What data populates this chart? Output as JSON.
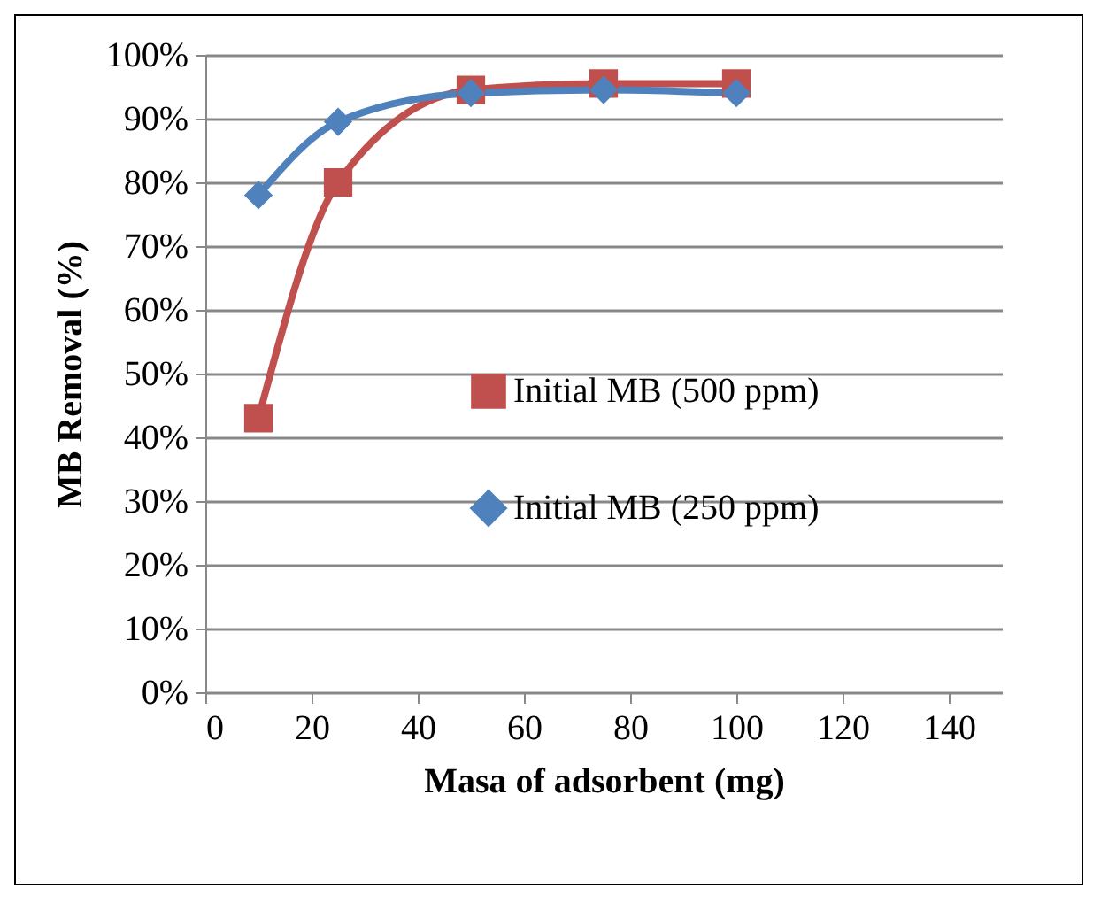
{
  "chart_data": {
    "type": "line",
    "xlabel": "Masa of adsorbent (mg)",
    "ylabel": "MB Removal (%)",
    "x": [
      10,
      25,
      50,
      75,
      100
    ],
    "series": [
      {
        "name": "Initial MB (500 ppm)",
        "color": "#c0504d",
        "marker": "square",
        "values": [
          43,
          80,
          94.5,
          95.5,
          95.5
        ]
      },
      {
        "name": "Initial MB (250 ppm)",
        "color": "#4f81bd",
        "marker": "diamond",
        "values": [
          78,
          89.5,
          94,
          94.5,
          94
        ]
      }
    ],
    "xlim": [
      0,
      150
    ],
    "xticks": [
      0,
      20,
      40,
      60,
      80,
      100,
      120,
      140
    ],
    "ylim": [
      0,
      100
    ],
    "yticks": [
      {
        "value": 0,
        "label": "0%"
      },
      {
        "value": 10,
        "label": "10%"
      },
      {
        "value": 20,
        "label": "20%"
      },
      {
        "value": 30,
        "label": "30%"
      },
      {
        "value": 40,
        "label": "40%"
      },
      {
        "value": 50,
        "label": "50%"
      },
      {
        "value": 60,
        "label": "60%"
      },
      {
        "value": 70,
        "label": "70%"
      },
      {
        "value": 80,
        "label": "80%"
      },
      {
        "value": 90,
        "label": "90%"
      },
      {
        "value": 100,
        "label": "100%"
      }
    ],
    "grid": "y",
    "legend": "right",
    "line_style": "solid"
  }
}
